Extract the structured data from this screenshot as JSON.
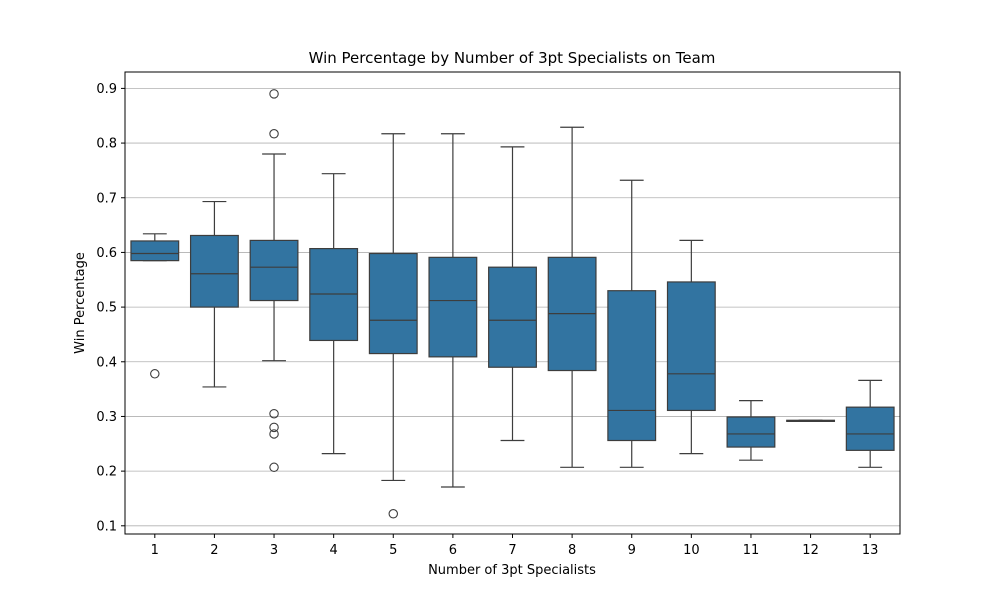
{
  "chart_data": {
    "type": "box",
    "title": "Win Percentage by Number of 3pt Specialists on Team",
    "xlabel": "Number of 3pt Specialists",
    "ylabel": "Win Percentage",
    "ylim": [
      0.085,
      0.93
    ],
    "yticks": [
      0.1,
      0.2,
      0.3,
      0.4,
      0.5,
      0.6,
      0.7,
      0.8,
      0.9
    ],
    "ytick_labels": [
      "0.1",
      "0.2",
      "0.3",
      "0.4",
      "0.5",
      "0.6",
      "0.7",
      "0.8",
      "0.9"
    ],
    "grid": "y",
    "box_color": "#3274a1",
    "line_color": "#3d3d3d",
    "categories": [
      "1",
      "2",
      "3",
      "4",
      "5",
      "6",
      "7",
      "8",
      "9",
      "10",
      "11",
      "12",
      "13"
    ],
    "boxes": [
      {
        "category": "1",
        "whisker_low": 0.585,
        "q1": 0.585,
        "median": 0.598,
        "q3": 0.621,
        "whisker_high": 0.634,
        "outliers": [
          0.378
        ]
      },
      {
        "category": "2",
        "whisker_low": 0.354,
        "q1": 0.5,
        "median": 0.561,
        "q3": 0.631,
        "whisker_high": 0.693,
        "outliers": []
      },
      {
        "category": "3",
        "whisker_low": 0.402,
        "q1": 0.512,
        "median": 0.573,
        "q3": 0.622,
        "whisker_high": 0.78,
        "outliers": [
          0.89,
          0.817,
          0.305,
          0.28,
          0.268,
          0.207
        ]
      },
      {
        "category": "4",
        "whisker_low": 0.232,
        "q1": 0.439,
        "median": 0.524,
        "q3": 0.607,
        "whisker_high": 0.744,
        "outliers": []
      },
      {
        "category": "5",
        "whisker_low": 0.183,
        "q1": 0.415,
        "median": 0.476,
        "q3": 0.598,
        "whisker_high": 0.817,
        "outliers": [
          0.122
        ]
      },
      {
        "category": "6",
        "whisker_low": 0.171,
        "q1": 0.409,
        "median": 0.512,
        "q3": 0.591,
        "whisker_high": 0.817,
        "outliers": []
      },
      {
        "category": "7",
        "whisker_low": 0.256,
        "q1": 0.39,
        "median": 0.476,
        "q3": 0.573,
        "whisker_high": 0.793,
        "outliers": []
      },
      {
        "category": "8",
        "whisker_low": 0.207,
        "q1": 0.384,
        "median": 0.488,
        "q3": 0.591,
        "whisker_high": 0.829,
        "outliers": []
      },
      {
        "category": "9",
        "whisker_low": 0.207,
        "q1": 0.256,
        "median": 0.311,
        "q3": 0.53,
        "whisker_high": 0.732,
        "outliers": []
      },
      {
        "category": "10",
        "whisker_low": 0.232,
        "q1": 0.311,
        "median": 0.378,
        "q3": 0.546,
        "whisker_high": 0.622,
        "outliers": []
      },
      {
        "category": "11",
        "whisker_low": 0.22,
        "q1": 0.244,
        "median": 0.268,
        "q3": 0.299,
        "whisker_high": 0.329,
        "outliers": []
      },
      {
        "category": "12",
        "whisker_low": 0.291,
        "q1": 0.291,
        "median": 0.291,
        "q3": 0.293,
        "whisker_high": 0.293,
        "outliers": []
      },
      {
        "category": "13",
        "whisker_low": 0.207,
        "q1": 0.238,
        "median": 0.268,
        "q3": 0.317,
        "whisker_high": 0.366,
        "outliers": []
      }
    ]
  }
}
